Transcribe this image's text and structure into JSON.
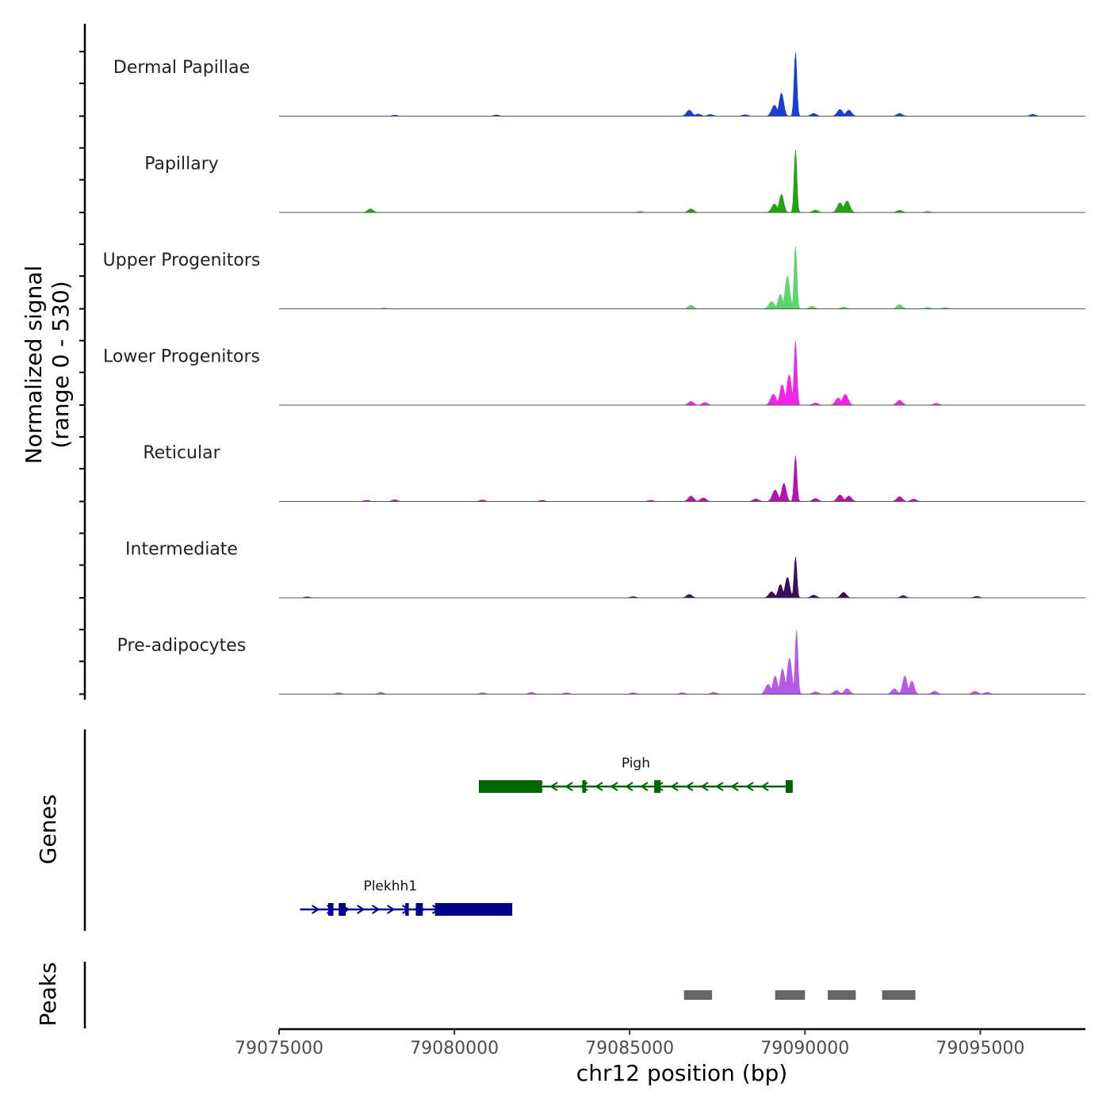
{
  "chart_data": {
    "type": "area",
    "chromosome": "chr12",
    "xlabel": "chr12 position (bp)",
    "xlim": [
      79075000,
      79098000
    ],
    "x_ticks": [
      79075000,
      79080000,
      79085000,
      79090000,
      79095000
    ],
    "x_tick_labels": [
      "79075000",
      "79080000",
      "79085000",
      "79090000",
      "79095000"
    ],
    "ylabel_line1": "Normalized signal",
    "ylabel_line2": "(range 0 - 530)",
    "ylim": [
      0,
      530
    ],
    "tracks": [
      {
        "name": "Dermal Papillae",
        "color": "#1a3fd6",
        "peaks": [
          {
            "x": 79089730,
            "y": 530
          },
          {
            "x": 79089330,
            "y": 190
          },
          {
            "x": 79089130,
            "y": 90
          },
          {
            "x": 79086700,
            "y": 50
          },
          {
            "x": 79091000,
            "y": 55
          },
          {
            "x": 79091250,
            "y": 50
          },
          {
            "x": 79092700,
            "y": 22
          },
          {
            "x": 79096500,
            "y": 15
          },
          {
            "x": 79086950,
            "y": 18
          },
          {
            "x": 79087300,
            "y": 14
          },
          {
            "x": 79088300,
            "y": 12
          },
          {
            "x": 79081200,
            "y": 10
          },
          {
            "x": 79078300,
            "y": 8
          },
          {
            "x": 79090250,
            "y": 22
          }
        ]
      },
      {
        "name": "Papillary",
        "color": "#22a312",
        "peaks": [
          {
            "x": 79089730,
            "y": 520
          },
          {
            "x": 79089330,
            "y": 150
          },
          {
            "x": 79089130,
            "y": 70
          },
          {
            "x": 79077600,
            "y": 30
          },
          {
            "x": 79086750,
            "y": 30
          },
          {
            "x": 79091000,
            "y": 80
          },
          {
            "x": 79091200,
            "y": 95
          },
          {
            "x": 79092700,
            "y": 18
          },
          {
            "x": 79090300,
            "y": 20
          },
          {
            "x": 79093500,
            "y": 8
          },
          {
            "x": 79085300,
            "y": 8
          }
        ]
      },
      {
        "name": "Upper Progenitors",
        "color": "#5cd66a",
        "peaks": [
          {
            "x": 79089730,
            "y": 520
          },
          {
            "x": 79089500,
            "y": 270
          },
          {
            "x": 79089300,
            "y": 120
          },
          {
            "x": 79089050,
            "y": 60
          },
          {
            "x": 79086750,
            "y": 30
          },
          {
            "x": 79092700,
            "y": 35
          },
          {
            "x": 79091100,
            "y": 15
          },
          {
            "x": 79090200,
            "y": 20
          },
          {
            "x": 79093500,
            "y": 12
          },
          {
            "x": 79094000,
            "y": 10
          },
          {
            "x": 79078000,
            "y": 8
          }
        ]
      },
      {
        "name": "Lower Progenitors",
        "color": "#f224e8",
        "peaks": [
          {
            "x": 79089730,
            "y": 530
          },
          {
            "x": 79089550,
            "y": 250
          },
          {
            "x": 79089350,
            "y": 170
          },
          {
            "x": 79089100,
            "y": 90
          },
          {
            "x": 79091150,
            "y": 90
          },
          {
            "x": 79090950,
            "y": 60
          },
          {
            "x": 79092700,
            "y": 40
          },
          {
            "x": 79086750,
            "y": 30
          },
          {
            "x": 79087150,
            "y": 22
          },
          {
            "x": 79093750,
            "y": 15
          },
          {
            "x": 79090300,
            "y": 18
          }
        ]
      },
      {
        "name": "Reticular",
        "color": "#b414ad",
        "peaks": [
          {
            "x": 79089730,
            "y": 380
          },
          {
            "x": 79089400,
            "y": 150
          },
          {
            "x": 79089150,
            "y": 95
          },
          {
            "x": 79088600,
            "y": 22
          },
          {
            "x": 79086750,
            "y": 45
          },
          {
            "x": 79087100,
            "y": 30
          },
          {
            "x": 79091000,
            "y": 55
          },
          {
            "x": 79091250,
            "y": 45
          },
          {
            "x": 79092700,
            "y": 40
          },
          {
            "x": 79093100,
            "y": 20
          },
          {
            "x": 79090300,
            "y": 25
          },
          {
            "x": 79080800,
            "y": 12
          },
          {
            "x": 79078300,
            "y": 14
          },
          {
            "x": 79077500,
            "y": 10
          },
          {
            "x": 79082500,
            "y": 10
          },
          {
            "x": 79085600,
            "y": 10
          }
        ]
      },
      {
        "name": "Intermediate",
        "color": "#3a0f5a",
        "peaks": [
          {
            "x": 79089730,
            "y": 340
          },
          {
            "x": 79089500,
            "y": 170
          },
          {
            "x": 79089300,
            "y": 110
          },
          {
            "x": 79089050,
            "y": 50
          },
          {
            "x": 79086700,
            "y": 28
          },
          {
            "x": 79091100,
            "y": 45
          },
          {
            "x": 79090250,
            "y": 22
          },
          {
            "x": 79092800,
            "y": 18
          },
          {
            "x": 79094900,
            "y": 12
          },
          {
            "x": 79075800,
            "y": 8
          },
          {
            "x": 79085100,
            "y": 10
          }
        ]
      },
      {
        "name": "Pre-adipocytes",
        "color": "#b55ae8",
        "peaks": [
          {
            "x": 79089760,
            "y": 530
          },
          {
            "x": 79089560,
            "y": 300
          },
          {
            "x": 79089360,
            "y": 210
          },
          {
            "x": 79089150,
            "y": 150
          },
          {
            "x": 79088950,
            "y": 80
          },
          {
            "x": 79092850,
            "y": 150
          },
          {
            "x": 79093050,
            "y": 110
          },
          {
            "x": 79092550,
            "y": 45
          },
          {
            "x": 79091200,
            "y": 45
          },
          {
            "x": 79090900,
            "y": 30
          },
          {
            "x": 79093700,
            "y": 25
          },
          {
            "x": 79094850,
            "y": 25
          },
          {
            "x": 79090300,
            "y": 20
          },
          {
            "x": 79087400,
            "y": 15
          },
          {
            "x": 79086500,
            "y": 12
          },
          {
            "x": 79085100,
            "y": 12
          },
          {
            "x": 79083200,
            "y": 12
          },
          {
            "x": 79082200,
            "y": 15
          },
          {
            "x": 79080800,
            "y": 12
          },
          {
            "x": 79077900,
            "y": 14
          },
          {
            "x": 79076700,
            "y": 12
          },
          {
            "x": 79095200,
            "y": 15
          }
        ]
      }
    ],
    "genes_label": "Genes",
    "genes": [
      {
        "name": "Pigh",
        "color": "#006400",
        "strand": "-",
        "start": 79080700,
        "end": 79089650,
        "exons": [
          [
            79080700,
            79082500
          ],
          [
            79083650,
            79083750
          ],
          [
            79085700,
            79085880
          ],
          [
            79089450,
            79089650
          ]
        ],
        "thick": [
          [
            79080700,
            79082450
          ]
        ]
      },
      {
        "name": "Plekhh1",
        "color": "#00008b",
        "strand": "+",
        "start": 79075600,
        "end": 79081650,
        "exons": [
          [
            79076400,
            79076550
          ],
          [
            79076700,
            79076900
          ],
          [
            79078600,
            79078700
          ],
          [
            79078900,
            79079100
          ],
          [
            79079450,
            79081650
          ]
        ],
        "thick": [
          [
            79079450,
            79081650
          ]
        ]
      }
    ],
    "peaks_label": "Peaks",
    "peak_regions": [
      [
        79086550,
        79087350
      ],
      [
        79089150,
        79090000
      ],
      [
        79090650,
        79091450
      ],
      [
        79092200,
        79093150
      ]
    ]
  }
}
